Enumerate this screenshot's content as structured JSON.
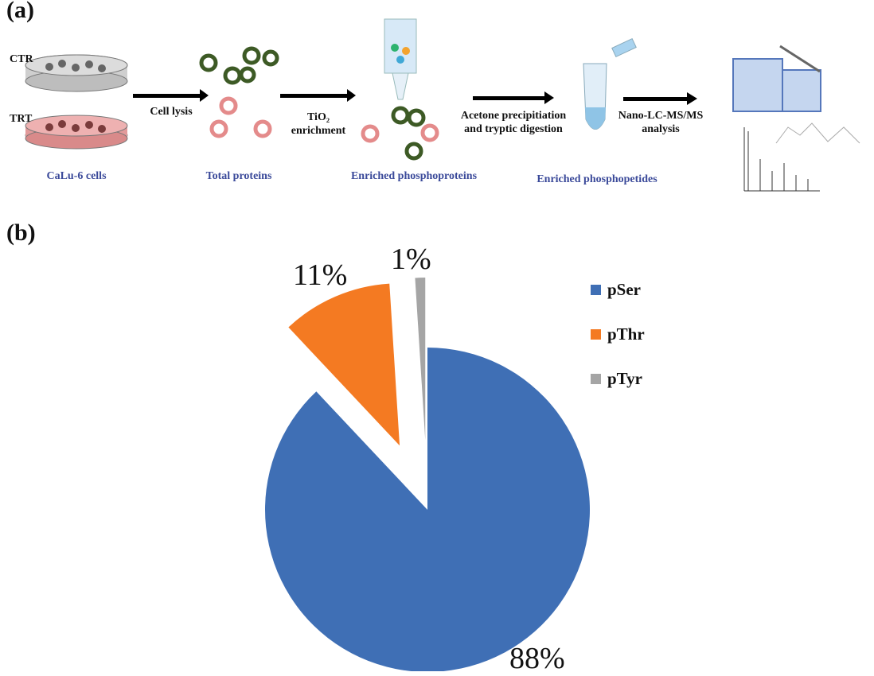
{
  "panel_a": {
    "label": "(a)",
    "dish_labels": [
      "CTR",
      "TRT"
    ],
    "steps": [
      {
        "line1": "Cell lysis",
        "line2": ""
      },
      {
        "line1": "TiO₂",
        "line2": "enrichment"
      },
      {
        "line1": "Acetone precipitiation",
        "line2": "and tryptic digestion"
      },
      {
        "line1": "Nano-LC-MS/MS",
        "line2": "analysis"
      }
    ],
    "captions": [
      "CaLu-6 cells",
      "Total proteins",
      "Enriched phosphoproteins",
      "Enriched phosphopetides"
    ]
  },
  "panel_b": {
    "label": "(b)"
  },
  "chart_data": {
    "type": "pie",
    "categories": [
      "pSer",
      "pThr",
      "pTyr"
    ],
    "values": [
      88,
      11,
      1
    ],
    "labels": [
      "88%",
      "11%",
      "1%"
    ],
    "colors": [
      "#3f6fb5",
      "#f47a22",
      "#a5a5a5"
    ],
    "exploded": [
      false,
      true,
      true
    ],
    "legend_position": "right"
  }
}
